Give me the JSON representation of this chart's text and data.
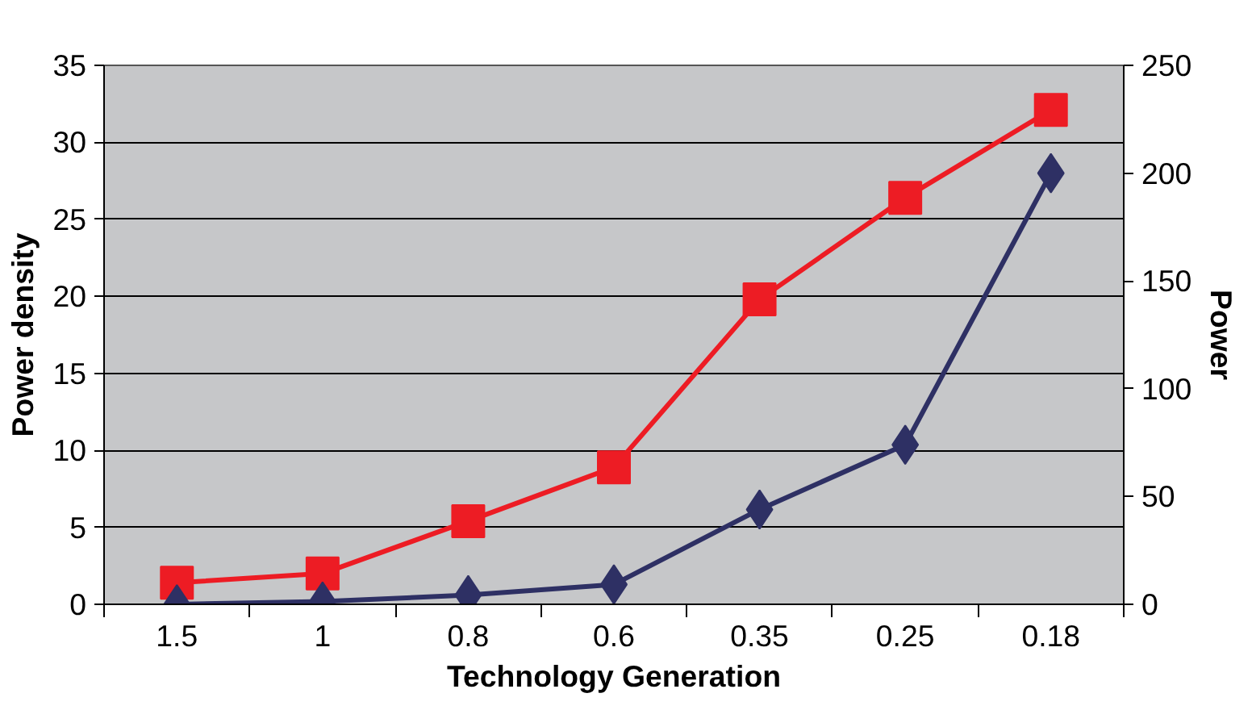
{
  "chart_data": {
    "type": "line",
    "xlabel": "Technology Generation",
    "ylabel": "Power density",
    "y2label": "Power",
    "categories": [
      "1.5",
      "1",
      "0.8",
      "0.6",
      "0.35",
      "0.25",
      "0.18"
    ],
    "series": [
      {
        "color": "#ed1c24",
        "marker": "square",
        "values": [
          1.4,
          2.0,
          5.4,
          8.9,
          19.8,
          26.4,
          32.1
        ]
      },
      {
        "color": "#2e3064",
        "marker": "diamond",
        "axis": "y2",
        "values": [
          0,
          1.3,
          4.3,
          9.2,
          44,
          74,
          200
        ]
      }
    ],
    "ylim": [
      0,
      35
    ],
    "yticks": [
      0,
      5,
      10,
      15,
      20,
      25,
      30,
      35
    ],
    "y2lim": [
      0,
      250
    ],
    "y2ticks": [
      0,
      50,
      100,
      150,
      200,
      250
    ],
    "grid": "y"
  }
}
